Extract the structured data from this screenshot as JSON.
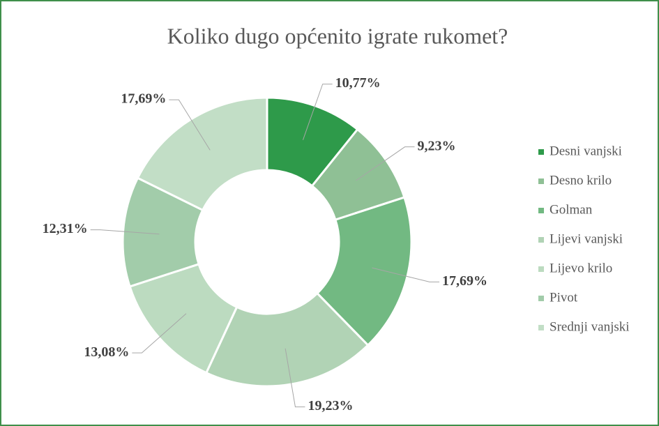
{
  "chart_data": {
    "type": "donut",
    "title": "Koliko dugo općenito igrate rukomet?",
    "categories": [
      "Desni vanjski",
      "Desno krilo",
      "Golman",
      "Lijevi vanjski",
      "Lijevo krilo",
      "Pivot",
      "Srednji vanjski"
    ],
    "values": [
      10.77,
      9.23,
      17.69,
      19.23,
      13.08,
      12.31,
      17.69
    ],
    "value_labels": [
      "10,77%",
      "9,23%",
      "17,69%",
      "19,23%",
      "13,08%",
      "12,31%",
      "17,69%"
    ],
    "colors": [
      "#2e9a4a",
      "#8fc095",
      "#72b982",
      "#b1d3b5",
      "#bcdbc0",
      "#a2ccaa",
      "#c2dec6"
    ],
    "legend": "right"
  }
}
